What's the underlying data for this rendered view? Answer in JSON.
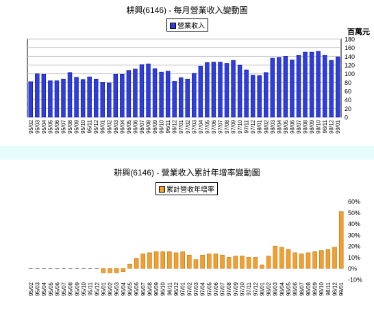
{
  "chart_data": [
    {
      "type": "bar",
      "title": "耕興(6146) - 每月營業收入變動圖",
      "legend": "營業收入",
      "unit_label": "百萬元",
      "color": "#2d3fd8",
      "ylim": [
        0,
        180
      ],
      "yticks": [
        "0",
        "20",
        "40",
        "60",
        "80",
        "100",
        "120",
        "140",
        "160",
        "180"
      ],
      "axis_side": "right",
      "grid": true,
      "legend_position": "top-center",
      "categories": [
        "95/02",
        "95/03",
        "95/04",
        "95/05",
        "95/06",
        "95/07",
        "95/08",
        "95/09",
        "95/10",
        "95/11",
        "95/12",
        "96/01",
        "96/02",
        "96/03",
        "96/04",
        "96/05",
        "96/06",
        "96/07",
        "96/08",
        "96/09",
        "96/10",
        "96/11",
        "96/12",
        "97/01",
        "97/02",
        "97/03",
        "97/04",
        "97/05",
        "97/06",
        "97/07",
        "97/08",
        "97/09",
        "97/10",
        "97/11",
        "97/12",
        "98/01",
        "98/02",
        "98/03",
        "98/04",
        "98/05",
        "98/06",
        "98/07",
        "98/08",
        "98/09",
        "98/10",
        "98/11",
        "98/12",
        "99/01"
      ],
      "values": [
        82,
        100,
        99,
        84,
        84,
        88,
        103,
        92,
        87,
        93,
        88,
        80,
        79,
        99,
        99,
        108,
        111,
        121,
        123,
        112,
        104,
        106,
        83,
        91,
        88,
        101,
        118,
        126,
        127,
        127,
        124,
        131,
        120,
        109,
        97,
        96,
        103,
        136,
        138,
        140,
        132,
        143,
        150,
        150,
        152,
        143,
        131,
        139
      ]
    },
    {
      "type": "bar",
      "title": "耕興(6146) -  營業收入累計年增率變動圖",
      "legend": "累計營收年增率",
      "color": "#f0a030",
      "ylim": [
        -10,
        60
      ],
      "yticks": [
        "-10%",
        "0%",
        "10%",
        "20%",
        "30%",
        "40%",
        "50%",
        "60%"
      ],
      "axis_side": "right",
      "grid": false,
      "legend_position": "top-center",
      "categories": [
        "95/02",
        "95/03",
        "95/04",
        "95/05",
        "95/06",
        "95/07",
        "95/08",
        "95/09",
        "95/10",
        "95/11",
        "95/12",
        "96/01",
        "96/02",
        "96/03",
        "96/04",
        "96/05",
        "96/06",
        "96/07",
        "96/08",
        "96/09",
        "96/10",
        "96/11",
        "96/12",
        "97/01",
        "97/02",
        "97/03",
        "97/04",
        "97/05",
        "97/06",
        "97/07",
        "97/08",
        "97/09",
        "97/10",
        "97/11",
        "97/12",
        "98/01",
        "98/02",
        "98/03",
        "98/04",
        "98/05",
        "98/06",
        "98/07",
        "98/08",
        "98/09",
        "98/10",
        "98/11",
        "98/12",
        "99/01"
      ],
      "values": [
        0,
        0,
        0,
        0,
        0,
        0,
        0,
        0,
        0,
        0,
        0,
        -4,
        -4,
        -4,
        -3,
        4,
        9,
        13,
        14,
        15,
        15,
        15,
        14,
        15,
        12,
        8,
        12,
        13,
        13,
        12,
        10,
        11,
        11,
        10,
        10,
        3,
        11,
        20,
        19,
        17,
        14,
        13,
        14,
        15,
        16,
        17,
        19,
        51
      ]
    }
  ]
}
